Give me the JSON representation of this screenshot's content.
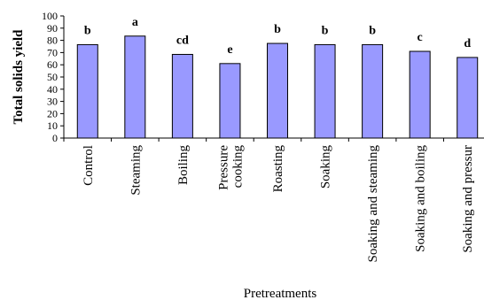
{
  "chart_data": {
    "type": "bar",
    "title": "",
    "ylabel": "Total solids yield",
    "xlabel": "Pretreatments",
    "ylim": [
      0,
      100
    ],
    "yticks": [
      0,
      10,
      20,
      30,
      40,
      50,
      60,
      70,
      80,
      90,
      100
    ],
    "grid": false,
    "bar_color": "#9999ff",
    "categories": [
      [
        "Control"
      ],
      [
        "Steaming"
      ],
      [
        "Boiling"
      ],
      [
        "Pressure",
        "cooking"
      ],
      [
        "Roasting"
      ],
      [
        "Soaking"
      ],
      [
        "Soaking and steaming"
      ],
      [
        "Soaking and boiling"
      ],
      [
        "Soaking and pressur"
      ]
    ],
    "values": [
      76.5,
      83.5,
      68.5,
      61,
      77.5,
      76.5,
      76.5,
      71,
      66
    ],
    "labels": [
      "b",
      "a",
      "cd",
      "e",
      "b",
      "b",
      "b",
      "c",
      "d"
    ]
  }
}
